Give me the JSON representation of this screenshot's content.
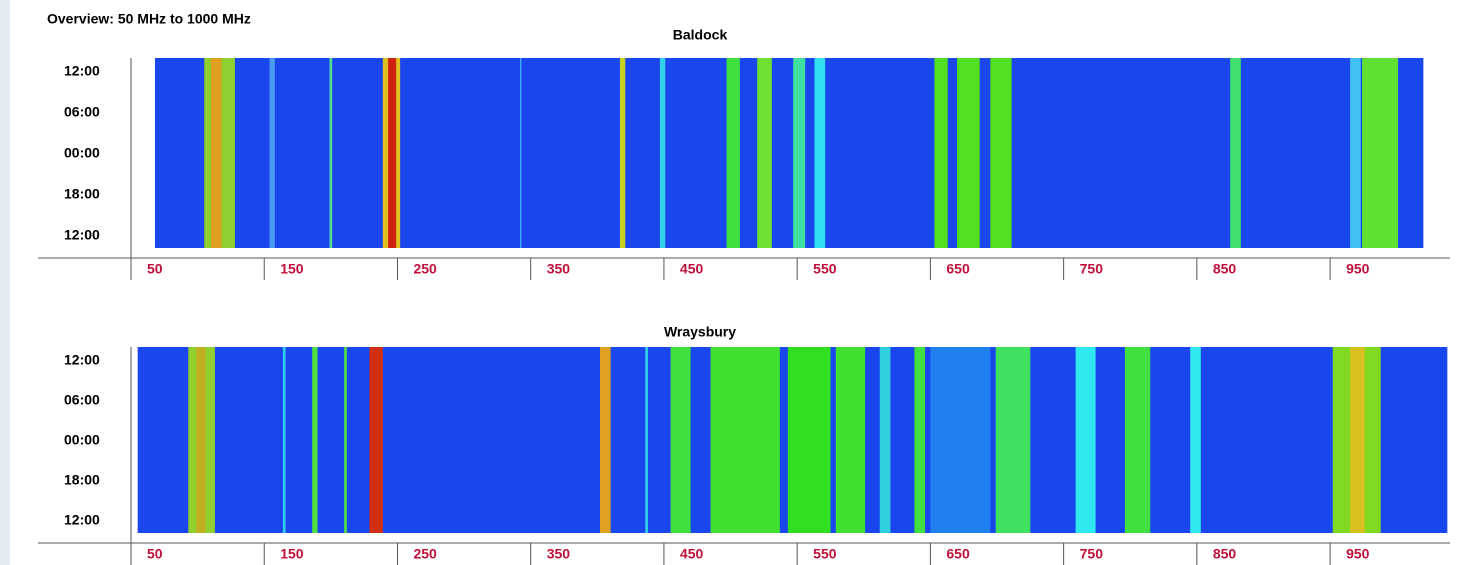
{
  "page_title": "Overview:  50 MHz to 1000 MHz",
  "chart_data": [
    {
      "type": "waterfall",
      "title": "Baldock",
      "xlim": [
        50,
        1040
      ],
      "xticks": [
        50,
        150,
        250,
        350,
        450,
        550,
        650,
        750,
        850,
        950
      ],
      "y_labels": [
        "12:00",
        "06:00",
        "00:00",
        "18:00",
        "12:00"
      ],
      "plot_range": [
        68,
        1020
      ],
      "background": "#1a46ee",
      "bands": [
        {
          "x": [
            105,
            128
          ],
          "color": "#8fcf30"
        },
        {
          "x": [
            110,
            118
          ],
          "color": "#e0a020"
        },
        {
          "x": [
            154,
            158
          ],
          "color": "#4a9af2"
        },
        {
          "x": [
            199,
            201
          ],
          "color": "#50e090"
        },
        {
          "x": [
            239,
            252
          ],
          "color": "#e0c020"
        },
        {
          "x": [
            243,
            249
          ],
          "color": "#d02010"
        },
        {
          "x": [
            342,
            343
          ],
          "color": "#40b0f0"
        },
        {
          "x": [
            417,
            421
          ],
          "color": "#c8d020"
        },
        {
          "x": [
            447,
            451
          ],
          "color": "#30d0e8"
        },
        {
          "x": [
            497,
            507
          ],
          "color": "#40e040"
        },
        {
          "x": [
            520,
            531
          ],
          "color": "#70e030"
        },
        {
          "x": [
            547,
            556
          ],
          "color": "#40e0a0"
        },
        {
          "x": [
            563,
            571
          ],
          "color": "#30e0f0"
        },
        {
          "x": [
            653,
            663
          ],
          "color": "#50e020"
        },
        {
          "x": [
            670,
            687
          ],
          "color": "#50e020"
        },
        {
          "x": [
            695,
            711
          ],
          "color": "#50e020"
        },
        {
          "x": [
            875,
            883
          ],
          "color": "#40e070"
        },
        {
          "x": [
            965,
            973
          ],
          "color": "#40c0f0"
        },
        {
          "x": [
            974,
            1001
          ],
          "color": "#60e030"
        }
      ]
    },
    {
      "type": "waterfall",
      "title": "Wraysbury",
      "xlim": [
        50,
        1040
      ],
      "xticks": [
        50,
        150,
        250,
        350,
        450,
        550,
        650,
        750,
        850,
        950
      ],
      "y_labels": [
        "12:00",
        "06:00",
        "00:00",
        "18:00",
        "12:00"
      ],
      "plot_range": [
        55,
        1038
      ],
      "background": "#1a46ee",
      "bands": [
        {
          "x": [
            93,
            113
          ],
          "color": "#8fcf30"
        },
        {
          "x": [
            99,
            106
          ],
          "color": "#c0b020"
        },
        {
          "x": [
            164,
            166
          ],
          "color": "#30d0e8"
        },
        {
          "x": [
            186,
            190
          ],
          "color": "#50e040"
        },
        {
          "x": [
            210,
            212
          ],
          "color": "#50e040"
        },
        {
          "x": [
            229,
            239
          ],
          "color": "#d03010"
        },
        {
          "x": [
            402,
            410
          ],
          "color": "#e0a020"
        },
        {
          "x": [
            436,
            438
          ],
          "color": "#30d0e8"
        },
        {
          "x": [
            455,
            470
          ],
          "color": "#40e040"
        },
        {
          "x": [
            485,
            537
          ],
          "color": "#40e030"
        },
        {
          "x": [
            543,
            575
          ],
          "color": "#30e020"
        },
        {
          "x": [
            579,
            601
          ],
          "color": "#40e030"
        },
        {
          "x": [
            612,
            620
          ],
          "color": "#30d0e0"
        },
        {
          "x": [
            638,
            646
          ],
          "color": "#40e040"
        },
        {
          "x": [
            650,
            695
          ],
          "color": "#2080f0"
        },
        {
          "x": [
            699,
            725
          ],
          "color": "#40e060"
        },
        {
          "x": [
            759,
            774
          ],
          "color": "#30e8f0"
        },
        {
          "x": [
            796,
            815
          ],
          "color": "#40e040"
        },
        {
          "x": [
            845,
            853
          ],
          "color": "#30e8f0"
        },
        {
          "x": [
            952,
            988
          ],
          "color": "#80d820"
        },
        {
          "x": [
            965,
            976
          ],
          "color": "#d8c020"
        }
      ]
    }
  ]
}
